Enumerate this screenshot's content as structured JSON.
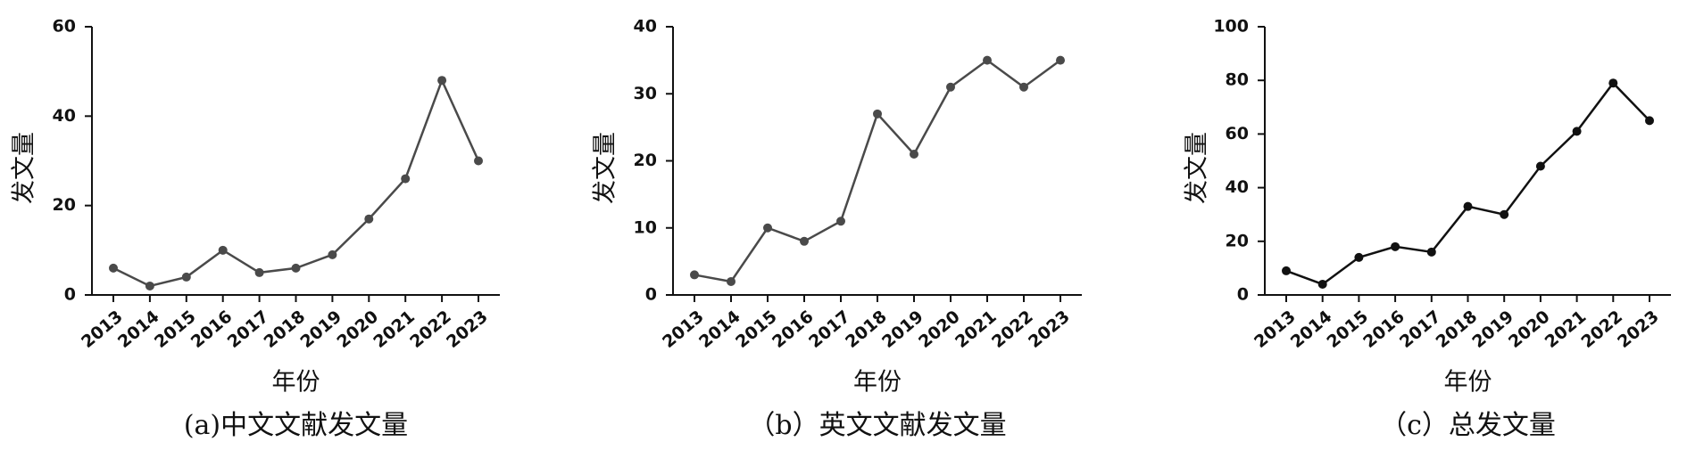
{
  "chart_data": [
    {
      "type": "line",
      "caption": "(a)中文文献发文量",
      "xlabel": "年份",
      "ylabel": "发文量",
      "categories": [
        "2013",
        "2014",
        "2015",
        "2016",
        "2017",
        "2018",
        "2019",
        "2020",
        "2021",
        "2022",
        "2023"
      ],
      "series": [
        {
          "color": "#4a4a4a",
          "values": [
            6,
            2,
            4,
            10,
            5,
            6,
            9,
            17,
            26,
            48,
            30
          ]
        }
      ],
      "ylim": [
        0,
        60
      ],
      "yticks": [
        0,
        20,
        40,
        60
      ]
    },
    {
      "type": "line",
      "caption": "（b）英文文献发文量",
      "xlabel": "年份",
      "ylabel": "发文量",
      "categories": [
        "2013",
        "2014",
        "2015",
        "2016",
        "2017",
        "2018",
        "2019",
        "2020",
        "2021",
        "2022",
        "2023"
      ],
      "series": [
        {
          "color": "#4a4a4a",
          "values": [
            3,
            2,
            10,
            8,
            11,
            27,
            21,
            31,
            35,
            31,
            35
          ]
        }
      ],
      "ylim": [
        0,
        40
      ],
      "yticks": [
        0,
        10,
        20,
        30,
        40
      ]
    },
    {
      "type": "line",
      "caption": "（c）总发文量",
      "xlabel": "年份",
      "ylabel": "发文量",
      "categories": [
        "2013",
        "2014",
        "2015",
        "2016",
        "2017",
        "2018",
        "2019",
        "2020",
        "2021",
        "2022",
        "2023"
      ],
      "series": [
        {
          "color": "#111111",
          "values": [
            9,
            4,
            14,
            18,
            16,
            33,
            30,
            48,
            61,
            79,
            65
          ]
        }
      ],
      "ylim": [
        0,
        100
      ],
      "yticks": [
        0,
        20,
        40,
        60,
        80,
        100
      ]
    }
  ]
}
